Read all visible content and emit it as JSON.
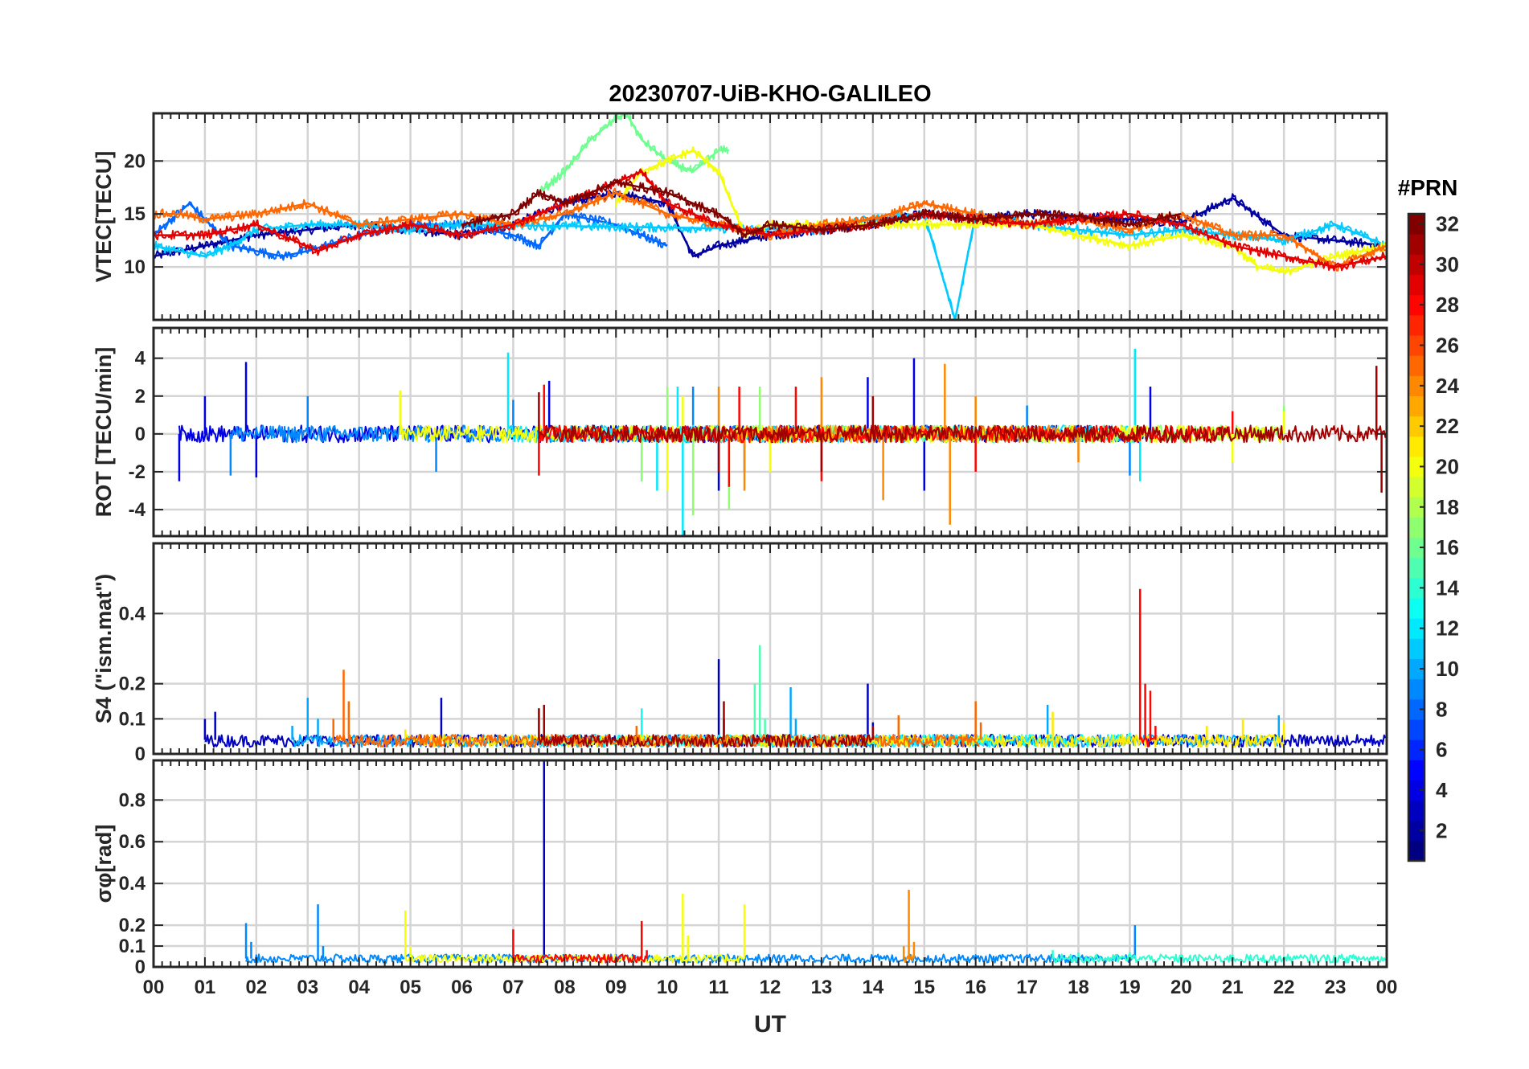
{
  "title": "20230707-UiB-KHO-GALILEO",
  "colorbar": {
    "title": "#PRN",
    "min": 1,
    "max": 32,
    "ticks": [
      2,
      4,
      6,
      8,
      10,
      12,
      14,
      16,
      18,
      20,
      22,
      24,
      26,
      28,
      30,
      32
    ],
    "colormap": "jet"
  },
  "x_axis": {
    "label": "UT",
    "range_hours": [
      0,
      24
    ],
    "ticks": [
      "00",
      "01",
      "02",
      "03",
      "04",
      "05",
      "06",
      "07",
      "08",
      "09",
      "10",
      "11",
      "12",
      "13",
      "14",
      "15",
      "16",
      "17",
      "18",
      "19",
      "20",
      "21",
      "22",
      "23",
      "00"
    ],
    "grid": true
  },
  "chart_data": [
    {
      "type": "line",
      "panel": "vtec",
      "ylabel": "VTEC[TECU]",
      "ylim": [
        5,
        24.5
      ],
      "yticks": [
        10,
        15,
        20
      ],
      "grid": true,
      "series": [
        {
          "prn": 2,
          "x": [
            0,
            1,
            2,
            3,
            4,
            5,
            6,
            7,
            8,
            9,
            10,
            10.5,
            11,
            12,
            13,
            14,
            15,
            16,
            17,
            18,
            19,
            20,
            21,
            22,
            23,
            24
          ],
          "y": [
            11,
            12,
            13,
            13.5,
            14,
            13.5,
            13,
            14,
            16,
            17,
            16,
            11,
            12,
            13,
            13.5,
            14,
            15,
            14.5,
            15,
            14.8,
            14.5,
            14.2,
            16.5,
            13,
            12.5,
            12
          ]
        },
        {
          "prn": 8,
          "x": [
            0,
            0.7,
            1.5,
            2.5,
            3,
            4,
            5,
            6,
            7,
            7.5,
            8,
            9,
            10
          ],
          "y": [
            13,
            16,
            12,
            11,
            11.5,
            13,
            14,
            14,
            13,
            12,
            15,
            14,
            12
          ]
        },
        {
          "prn": 11,
          "x": [
            0,
            1,
            1.5,
            2,
            3,
            4,
            5,
            6,
            13,
            14,
            15,
            15.6,
            16,
            17,
            18,
            19,
            20,
            21,
            22,
            23,
            24
          ],
          "y": [
            12,
            11,
            12,
            13.5,
            14,
            14,
            13.5,
            14,
            13.5,
            14.5,
            15,
            5,
            15,
            14,
            13.5,
            13,
            13.5,
            13,
            12.5,
            14,
            12
          ]
        },
        {
          "prn": 16,
          "x": [
            7.5,
            8,
            8.5,
            9,
            9.2,
            9.5,
            10,
            10.5,
            11,
            11.2
          ],
          "y": [
            17,
            19,
            22,
            24,
            24.5,
            22,
            20,
            19,
            21,
            21
          ]
        },
        {
          "prn": 20,
          "x": [
            9,
            9.5,
            10,
            10.5,
            11,
            11.5,
            12,
            17,
            18,
            19,
            20,
            21,
            21.5,
            22,
            23,
            24
          ],
          "y": [
            16,
            19,
            20,
            21,
            19,
            13,
            14,
            14,
            13,
            12,
            13,
            12,
            10,
            9.5,
            11,
            12
          ]
        },
        {
          "prn": 25,
          "x": [
            0,
            0.5,
            1,
            2,
            3,
            3.5,
            4,
            5,
            6,
            7,
            8,
            9,
            10,
            11,
            12,
            13,
            14,
            15,
            16,
            17,
            18,
            19,
            20,
            21,
            22,
            23,
            24
          ],
          "y": [
            15,
            15,
            14.5,
            15,
            16,
            15,
            14,
            14.5,
            15,
            14,
            15,
            17,
            15,
            14,
            13,
            14,
            14.5,
            16,
            15,
            14,
            14.5,
            13.5,
            15,
            13,
            13,
            10,
            12
          ]
        },
        {
          "prn": 29,
          "x": [
            0,
            1,
            2,
            3.2,
            4,
            5,
            6,
            7,
            8,
            9,
            9.5,
            10,
            11,
            12,
            13,
            14,
            15,
            16,
            17,
            18,
            19,
            20,
            21,
            22,
            23,
            24
          ],
          "y": [
            13,
            13,
            14,
            11.5,
            13,
            14,
            13,
            14,
            16,
            18,
            19,
            16,
            14,
            13,
            13.5,
            14,
            15,
            14.5,
            14,
            14.5,
            15,
            14,
            12,
            11,
            10,
            11
          ]
        },
        {
          "prn": 32,
          "x": [
            6,
            7,
            7.5,
            8,
            9,
            10,
            11,
            11.5,
            12,
            13,
            14,
            15,
            16,
            17,
            18,
            19,
            20
          ],
          "y": [
            14,
            15,
            17,
            16,
            18,
            17,
            15,
            13,
            14,
            13.5,
            14,
            15,
            14.5,
            15,
            14.8,
            14,
            15
          ]
        }
      ]
    },
    {
      "type": "line",
      "panel": "rot",
      "ylabel": "ROT [TECU/min]",
      "ylim": [
        -5.4,
        5.6
      ],
      "yticks": [
        -4,
        -2,
        0,
        2,
        4
      ],
      "grid": true,
      "series": [
        {
          "prn": 4,
          "x": [
            0.5,
            1,
            1.8,
            2,
            7.7,
            11,
            13.9,
            14.8,
            15,
            19.4
          ],
          "y": [
            -2.5,
            2,
            3.8,
            -2.3,
            2.8,
            -3,
            3,
            4,
            -3,
            2.5
          ]
        },
        {
          "prn": 9,
          "x": [
            1.5,
            3,
            5.5,
            7,
            9.5,
            10.5,
            11.5,
            17,
            19
          ],
          "y": [
            -2.2,
            2,
            -2,
            1.8,
            -2.5,
            2.5,
            -2,
            1.5,
            -2.2
          ]
        },
        {
          "prn": 12,
          "x": [
            6.9,
            9.8,
            10.2,
            10.3,
            19.1,
            19.2
          ],
          "y": [
            4.3,
            -3,
            2.5,
            -5.4,
            4.5,
            -2.5
          ]
        },
        {
          "prn": 17,
          "x": [
            9.5,
            10,
            10.5,
            11.2,
            11.8,
            22
          ],
          "y": [
            -2.5,
            2.5,
            -4.3,
            -4,
            2.5,
            1.5
          ]
        },
        {
          "prn": 20,
          "x": [
            4.8,
            10,
            10.3,
            12,
            21,
            22
          ],
          "y": [
            2.3,
            -3,
            2,
            -2,
            -1.5,
            1.2
          ]
        },
        {
          "prn": 24,
          "x": [
            11,
            11.5,
            13,
            14.2,
            15.4,
            15.5,
            16,
            18
          ],
          "y": [
            2.5,
            -3,
            3,
            -3.5,
            3.7,
            -4.8,
            2,
            -1.5
          ]
        },
        {
          "prn": 28,
          "x": [
            7.5,
            7.6,
            11.2,
            11.4,
            12.5,
            13,
            16,
            21
          ],
          "y": [
            -2.2,
            2.6,
            -2.8,
            2.5,
            2.5,
            -2.5,
            -2,
            1.2
          ]
        },
        {
          "prn": 31,
          "x": [
            7.5,
            11,
            13,
            14,
            23.8,
            23.9,
            24
          ],
          "y": [
            2.2,
            -2,
            -2,
            2,
            3.6,
            -3.1,
            1.8
          ]
        }
      ]
    },
    {
      "type": "line",
      "panel": "s4",
      "ylabel": "S4 (\"ism.mat\")",
      "ylim": [
        0,
        0.6
      ],
      "yticks": [
        0,
        0.1,
        0.2,
        0.4
      ],
      "grid": true,
      "series": [
        {
          "prn": 3,
          "x": [
            1,
            1.2,
            5.6,
            11,
            11.1,
            13.9,
            14,
            24
          ],
          "y": [
            0.1,
            0.12,
            0.16,
            0.27,
            0.1,
            0.2,
            0.09,
            0.13
          ]
        },
        {
          "prn": 10,
          "x": [
            2.7,
            3,
            3.2,
            12.4,
            12.5,
            17.4,
            21.9
          ],
          "y": [
            0.08,
            0.16,
            0.1,
            0.19,
            0.1,
            0.14,
            0.11
          ]
        },
        {
          "prn": 13,
          "x": [
            7.5,
            9.5,
            14.5,
            19
          ],
          "y": [
            0.13,
            0.13,
            0.08,
            0.06
          ]
        },
        {
          "prn": 15,
          "x": [
            11.7,
            11.8,
            11.9
          ],
          "y": [
            0.2,
            0.31,
            0.1
          ]
        },
        {
          "prn": 21,
          "x": [
            4.9,
            17.5,
            20.5,
            21.2,
            22
          ],
          "y": [
            0.07,
            0.12,
            0.08,
            0.1,
            0.09
          ]
        },
        {
          "prn": 25,
          "x": [
            3.5,
            3.7,
            3.8,
            9.4,
            14.5,
            16,
            16.1
          ],
          "y": [
            0.1,
            0.24,
            0.15,
            0.08,
            0.11,
            0.15,
            0.09
          ]
        },
        {
          "prn": 28,
          "x": [
            19.2,
            19.3,
            19.4,
            19.5
          ],
          "y": [
            0.47,
            0.2,
            0.18,
            0.08
          ]
        },
        {
          "prn": 31,
          "x": [
            7.5,
            7.6,
            11.1,
            14
          ],
          "y": [
            0.13,
            0.14,
            0.15,
            0.08
          ]
        }
      ]
    },
    {
      "type": "line",
      "panel": "sigma_phi",
      "ylabel": "σφ[rad]",
      "ylim": [
        0,
        0.99
      ],
      "yticks": [
        0,
        0.1,
        0.2,
        0.4,
        0.6,
        0.8
      ],
      "grid": true,
      "series": [
        {
          "prn": 3,
          "x": [
            7.55,
            7.6,
            7.65
          ],
          "y": [
            0.02,
            0.99,
            0.02
          ]
        },
        {
          "prn": 9,
          "x": [
            1.8,
            1.9,
            3.2,
            3.3,
            19.1
          ],
          "y": [
            0.21,
            0.12,
            0.3,
            0.1,
            0.2
          ]
        },
        {
          "prn": 20,
          "x": [
            4.9,
            5,
            10.3,
            10.4,
            11.5
          ],
          "y": [
            0.27,
            0.1,
            0.35,
            0.15,
            0.3
          ]
        },
        {
          "prn": 24,
          "x": [
            14.6,
            14.7,
            14.8
          ],
          "y": [
            0.1,
            0.37,
            0.12
          ]
        },
        {
          "prn": 28,
          "x": [
            7,
            7.1,
            9.5,
            9.6
          ],
          "y": [
            0.18,
            0.06,
            0.22,
            0.08
          ]
        },
        {
          "prn": 14,
          "x": [
            17.5,
            18,
            19,
            20,
            21,
            22,
            23,
            24
          ],
          "y": [
            0.08,
            0.07,
            0.07,
            0.06,
            0.06,
            0.05,
            0.05,
            0.05
          ]
        }
      ]
    }
  ]
}
